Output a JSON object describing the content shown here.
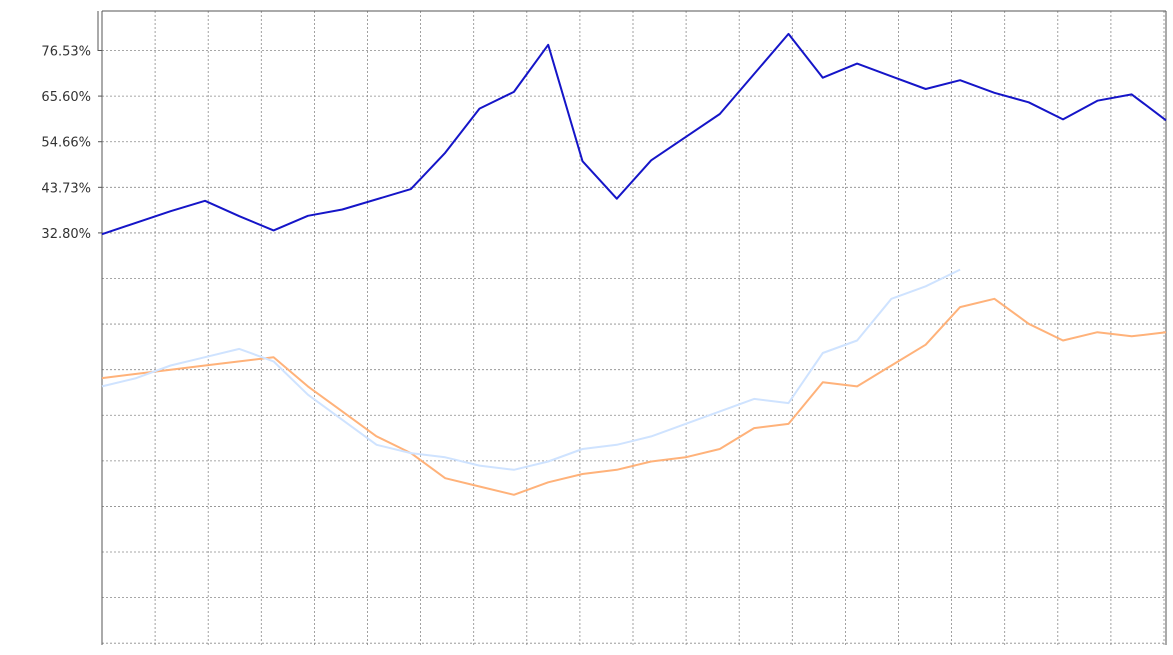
{
  "chart_data": {
    "type": "line",
    "title": "",
    "xlabel": "",
    "ylabel": "",
    "y_tick_labels": [
      "76.53%",
      "65.60%",
      "54.66%",
      "43.73%",
      "32.80%"
    ],
    "y_ticks": [
      76.53,
      65.6,
      54.66,
      43.73,
      32.8
    ],
    "ylim": [
      -66,
      86
    ],
    "grid": true,
    "legend": "none",
    "series": [
      {
        "key": "primary",
        "color": "#1515c8",
        "x": [
          0,
          2,
          3,
          4,
          5,
          6,
          7,
          9,
          10,
          11,
          12,
          13,
          14,
          15,
          16,
          18,
          19,
          20,
          21,
          22,
          24,
          25,
          26,
          27,
          28,
          29,
          30,
          31
        ],
        "y": [
          32.5,
          38,
          40.5,
          36.8,
          33.4,
          36.9,
          38.4,
          43.3,
          52,
          62.6,
          66.6,
          77.9,
          50,
          41,
          50.2,
          61.3,
          70.9,
          80.5,
          70,
          73.4,
          67.3,
          69.4,
          66.4,
          64.1,
          60,
          64.5,
          66,
          59.8
        ]
      },
      {
        "key": "orange",
        "color": "#ffb27a",
        "x": [
          0,
          1,
          2,
          3,
          4,
          5,
          6,
          7,
          8,
          9,
          10,
          11,
          12,
          13,
          14,
          15,
          16,
          17,
          18,
          19,
          20,
          21,
          22,
          23,
          24,
          25,
          26,
          27,
          28,
          29,
          30,
          31
        ],
        "y": [
          -2,
          -1,
          0,
          1,
          2,
          3,
          -4,
          -10,
          -16,
          -20,
          -26,
          -28,
          -30,
          -27,
          -25,
          -24,
          -22,
          -21,
          -19,
          -14,
          -13,
          -3,
          -4,
          1,
          6,
          15,
          17,
          11,
          7,
          9,
          8,
          9
        ]
      },
      {
        "key": "light-blue",
        "color": "#cfe3ff",
        "x": [
          0,
          1,
          2,
          3,
          4,
          5,
          6,
          7,
          8,
          9,
          10,
          11,
          12,
          13,
          14,
          15,
          16,
          17,
          18,
          19,
          20,
          21,
          22,
          23,
          24,
          25
        ],
        "y": [
          -4,
          -2,
          1,
          3,
          5,
          2,
          -6,
          -12,
          -18,
          -20,
          -21,
          -23,
          -24,
          -22,
          -19,
          -18,
          -16,
          -13,
          -10,
          -7,
          -8,
          4,
          7,
          17,
          20,
          24
        ]
      }
    ]
  }
}
